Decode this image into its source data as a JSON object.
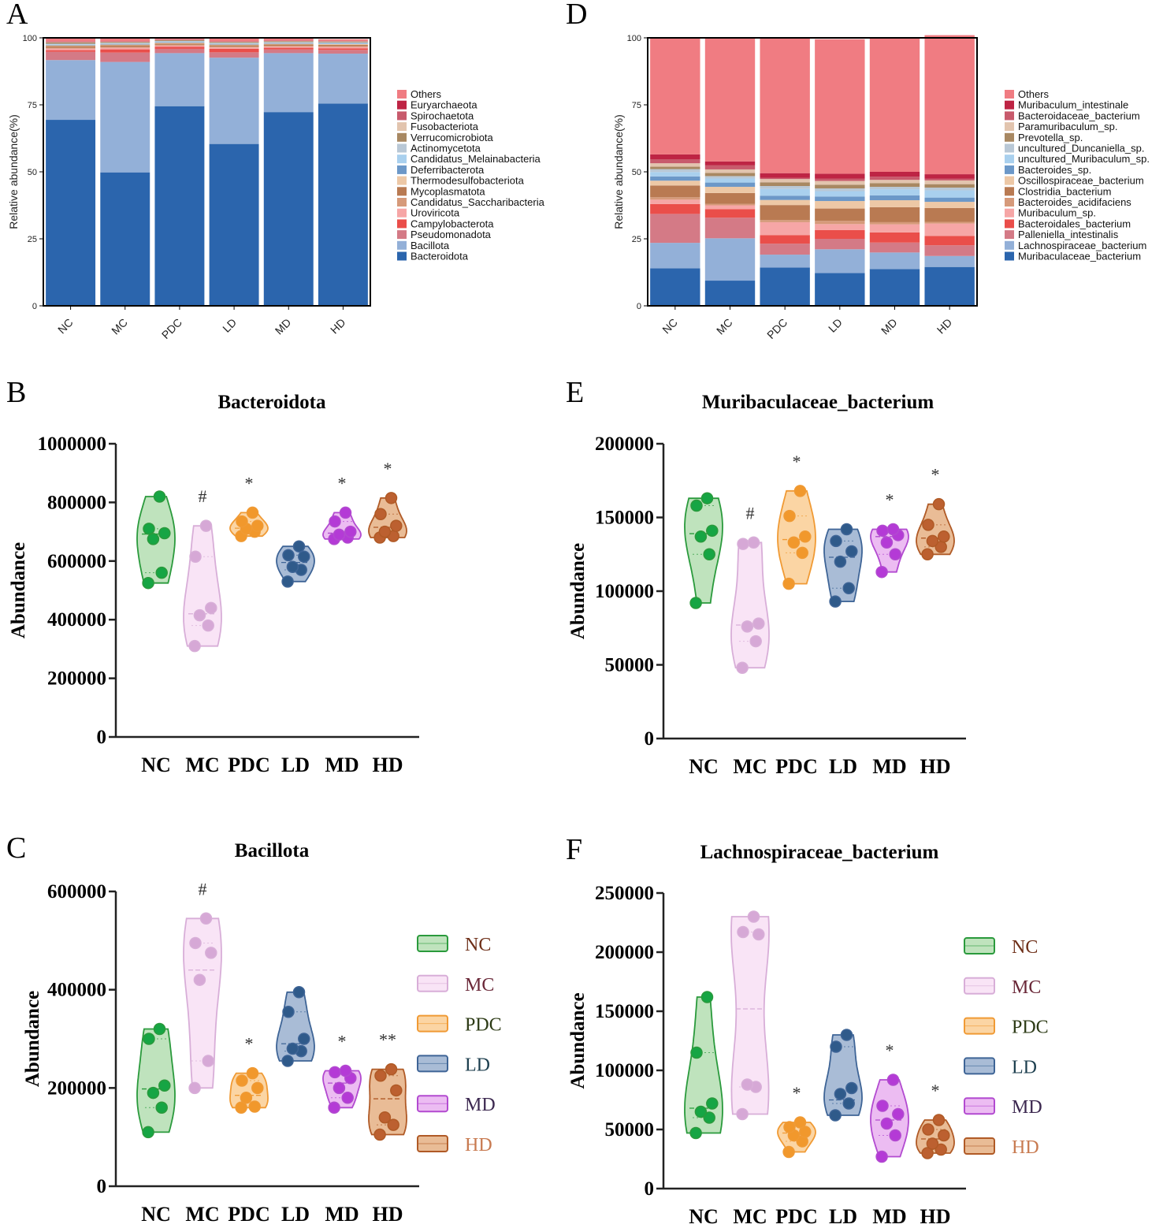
{
  "colors": {
    "NC": "#2a9a3c",
    "MC": "#d8aed8",
    "PDC": "#f09a34",
    "LD": "#3e6496",
    "MD": "#b24ad0",
    "HD": "#b05a26",
    "NC_fill": "#bfe3bd",
    "MC_fill": "#f9e4f6",
    "PDC_fill": "#fbd5a4",
    "LD_fill": "#a9bcd6",
    "MD_fill": "#ecbcf2",
    "HD_fill": "#e9bc96",
    "NC_text": "#6e2f18",
    "MC_text": "#6a2838",
    "PDC_text": "#2d3b16",
    "LD_text": "#1c3e4e",
    "MD_text": "#3c2850",
    "HD_text": "#c87a50",
    "NC_dot": "#16a544",
    "MC_dot": "#d6a8d6",
    "PDC_dot": "#f1982c",
    "LD_dot": "#2f5a8a",
    "MD_dot": "#b43ad6",
    "HD_dot": "#bc6030"
  },
  "chart_data": [
    {
      "panel": "A",
      "type": "bar",
      "stacked": true,
      "title": "",
      "ylabel": "Relative abundance(%)",
      "ylim": [
        0,
        100
      ],
      "yticks": [
        "0",
        "25",
        "50",
        "75",
        "100"
      ],
      "categories": [
        "NC",
        "MC",
        "PDC",
        "LD",
        "MD",
        "HD"
      ],
      "legend_position": "right",
      "series": [
        {
          "name": "Bacteroidota",
          "color": "#2b65ad",
          "values": [
            69.4,
            49.8,
            74.5,
            60.4,
            72.3,
            75.5
          ]
        },
        {
          "name": "Bacillota",
          "color": "#93b0d8",
          "values": [
            22.3,
            41.2,
            19.8,
            32.2,
            22.0,
            18.6
          ]
        },
        {
          "name": "Pseudomonadota",
          "color": "#d47a86",
          "values": [
            3.1,
            3.5,
            1.6,
            2.0,
            1.4,
            1.4
          ]
        },
        {
          "name": "Campylobacterota",
          "color": "#ea4e4a",
          "values": [
            0.6,
            1.2,
            0.8,
            1.3,
            0.6,
            0.6
          ]
        },
        {
          "name": "Uroviricota",
          "color": "#f6a6a6",
          "values": [
            0.6,
            0.6,
            0.4,
            0.5,
            0.4,
            0.5
          ]
        },
        {
          "name": "Candidatus_Saccharibacteria",
          "color": "#d69a7a",
          "values": [
            0.3,
            0.3,
            0.3,
            0.3,
            0.3,
            0.3
          ]
        },
        {
          "name": "Mycoplasmatota",
          "color": "#b97a52",
          "values": [
            0.6,
            0.6,
            0.5,
            0.5,
            0.5,
            0.5
          ]
        },
        {
          "name": "Thermodesulfobacteriota",
          "color": "#edc8a6",
          "values": [
            0.3,
            0.3,
            0.3,
            0.3,
            0.3,
            0.3
          ]
        },
        {
          "name": "Deferribacterota",
          "color": "#6c98c8",
          "values": [
            0.2,
            0.2,
            0.2,
            0.2,
            0.2,
            0.2
          ]
        },
        {
          "name": "Candidatus_Melainabacteria",
          "color": "#a9d0ee",
          "values": [
            0.2,
            0.2,
            0.2,
            0.2,
            0.2,
            0.2
          ]
        },
        {
          "name": "Actinomycetota",
          "color": "#b9c8d6",
          "values": [
            0.2,
            0.2,
            0.2,
            0.2,
            0.2,
            0.2
          ]
        },
        {
          "name": "Verrucomicrobiota",
          "color": "#a88862",
          "values": [
            0.5,
            0.3,
            0.3,
            0.3,
            0.3,
            0.3
          ]
        },
        {
          "name": "Fusobacteriota",
          "color": "#e2c4ae",
          "values": [
            0.1,
            0.1,
            0.1,
            0.1,
            0.1,
            0.1
          ]
        },
        {
          "name": "Spirochaetota",
          "color": "#c85a6c",
          "values": [
            0.2,
            0.1,
            0.1,
            0.1,
            0.1,
            0.1
          ]
        },
        {
          "name": "Euryarchaeota",
          "color": "#be2444",
          "values": [
            0.1,
            0.1,
            0.1,
            0.1,
            0.1,
            0.1
          ]
        },
        {
          "name": "Others",
          "color": "#f07c82",
          "values": [
            1.3,
            1.3,
            0.6,
            1.2,
            1.0,
            0.6
          ]
        }
      ]
    },
    {
      "panel": "D",
      "type": "bar",
      "stacked": true,
      "title": "",
      "ylabel": "Relative abundance(%)",
      "ylim": [
        0,
        100
      ],
      "yticks": [
        "0",
        "25",
        "50",
        "75",
        "100"
      ],
      "categories": [
        "NC",
        "MC",
        "PDC",
        "LD",
        "MD",
        "HD"
      ],
      "legend_position": "right",
      "series": [
        {
          "name": "Muribaculaceae_bacterium",
          "color": "#2b65ad",
          "values": [
            14.0,
            9.4,
            14.3,
            12.2,
            13.7,
            14.5
          ]
        },
        {
          "name": "Lachnospiraceae_bacterium",
          "color": "#93b0d8",
          "values": [
            9.5,
            15.8,
            4.8,
            8.9,
            6.2,
            4.1
          ]
        },
        {
          "name": "Palleniella_intestinalis",
          "color": "#d47a86",
          "values": [
            10.8,
            7.7,
            4.1,
            3.9,
            3.7,
            4.0
          ]
        },
        {
          "name": "Bacteroidales_bacterium",
          "color": "#ea4e4a",
          "values": [
            3.7,
            3.2,
            3.2,
            3.3,
            3.8,
            3.5
          ]
        },
        {
          "name": "Muribaculum_sp.",
          "color": "#f6a6a6",
          "values": [
            1.6,
            1.4,
            4.8,
            2.2,
            3.0,
            4.6
          ]
        },
        {
          "name": "Bacteroides_acidifaciens",
          "color": "#d69a7a",
          "values": [
            0.9,
            0.5,
            0.8,
            1.2,
            0.8,
            0.6
          ]
        },
        {
          "name": "Clostridia_bacterium",
          "color": "#b97a52",
          "values": [
            4.4,
            4.1,
            5.6,
            4.6,
            5.6,
            5.2
          ]
        },
        {
          "name": "Oscillospiraceae_bacterium",
          "color": "#edc8a6",
          "values": [
            1.8,
            2.3,
            1.9,
            2.8,
            2.6,
            2.3
          ]
        },
        {
          "name": "Bacteroides_sp.",
          "color": "#6c98c8",
          "values": [
            1.6,
            1.6,
            1.6,
            1.7,
            1.8,
            1.6
          ]
        },
        {
          "name": "uncultured_Muribaculum_sp.",
          "color": "#a9d0ee",
          "values": [
            1.6,
            1.5,
            2.5,
            2.0,
            2.3,
            2.7
          ]
        },
        {
          "name": "uncultured_Duncaniella_sp.",
          "color": "#b9c8d6",
          "values": [
            1.1,
            0.9,
            1.1,
            1.0,
            0.9,
            1.0
          ]
        },
        {
          "name": "Prevotella_sp.",
          "color": "#a88862",
          "values": [
            0.9,
            1.2,
            1.4,
            1.4,
            1.4,
            1.3
          ]
        },
        {
          "name": "Paramuribaculum_sp.",
          "color": "#e2c4ae",
          "values": [
            1.3,
            1.3,
            1.2,
            1.4,
            1.2,
            1.4
          ]
        },
        {
          "name": "Bacteroidaceae_bacterium",
          "color": "#c85a6c",
          "values": [
            1.5,
            1.6,
            0.5,
            0.9,
            1.2,
            0.6
          ]
        },
        {
          "name": "Muribaculum_intestinale",
          "color": "#be2444",
          "values": [
            1.8,
            1.4,
            1.7,
            1.8,
            1.8,
            1.7
          ]
        },
        {
          "name": "Others",
          "color": "#f07c82",
          "values": [
            43.5,
            46.1,
            50.5,
            50.2,
            50.0,
            51.9
          ]
        }
      ]
    },
    {
      "panel": "B",
      "type": "violin",
      "title": "Bacteroidota",
      "ylabel": "Abundance",
      "ylim": [
        0,
        1000000
      ],
      "yticks": [
        "0",
        "200000",
        "400000",
        "600000",
        "800000",
        "1000000"
      ],
      "categories": [
        "NC",
        "MC",
        "PDC",
        "LD",
        "MD",
        "HD"
      ],
      "points": {
        "NC": [
          525000,
          560000,
          675000,
          695000,
          710000,
          820000
        ],
        "MC": [
          310000,
          380000,
          415000,
          440000,
          615000,
          720000
        ],
        "PDC": [
          685000,
          700000,
          710000,
          720000,
          735000,
          765000
        ],
        "LD": [
          530000,
          570000,
          580000,
          615000,
          620000,
          650000
        ],
        "MD": [
          675000,
          680000,
          690000,
          700000,
          735000,
          765000
        ],
        "HD": [
          680000,
          685000,
          700000,
          720000,
          760000,
          815000
        ]
      },
      "medians": [
        692000,
        420000,
        712000,
        595000,
        695000,
        715000
      ],
      "significance": [
        "",
        "#",
        "*",
        "",
        "*",
        "*"
      ]
    },
    {
      "panel": "E",
      "type": "violin",
      "title": "Muribaculaceae_bacterium",
      "ylabel": "Abundance",
      "ylim": [
        0,
        200000
      ],
      "yticks": [
        "0",
        "50000",
        "100000",
        "150000",
        "200000"
      ],
      "categories": [
        "NC",
        "MC",
        "PDC",
        "LD",
        "MD",
        "HD"
      ],
      "points": {
        "NC": [
          92000,
          125000,
          137000,
          141000,
          158000,
          163000
        ],
        "MC": [
          48000,
          66000,
          76000,
          78000,
          132000,
          133000
        ],
        "PDC": [
          105000,
          126000,
          133000,
          137000,
          151000,
          168000
        ],
        "LD": [
          93000,
          102000,
          120000,
          127000,
          134000,
          142000
        ],
        "MD": [
          113000,
          125000,
          133000,
          138000,
          141000,
          142000
        ],
        "HD": [
          125000,
          130000,
          134000,
          137000,
          145000,
          159000
        ]
      },
      "medians": [
        139000,
        77000,
        135000,
        123000,
        137000,
        136000
      ],
      "significance": [
        "",
        "#",
        "*",
        "",
        "*",
        "*"
      ]
    },
    {
      "panel": "C",
      "type": "violin",
      "title": "Bacillota",
      "ylabel": "Abundance",
      "ylim": [
        0,
        600000
      ],
      "yticks": [
        "0",
        "200000",
        "400000",
        "600000"
      ],
      "categories": [
        "NC",
        "MC",
        "PDC",
        "LD",
        "MD",
        "HD"
      ],
      "points": {
        "NC": [
          110000,
          160000,
          190000,
          205000,
          300000,
          320000
        ],
        "MC": [
          200000,
          255000,
          420000,
          475000,
          495000,
          545000
        ],
        "PDC": [
          160000,
          162000,
          180000,
          200000,
          215000,
          230000
        ],
        "LD": [
          255000,
          275000,
          280000,
          300000,
          355000,
          395000
        ],
        "MD": [
          160000,
          180000,
          200000,
          220000,
          232000,
          235000
        ],
        "HD": [
          105000,
          125000,
          140000,
          195000,
          225000,
          238000
        ]
      },
      "medians": [
        198000,
        440000,
        185000,
        290000,
        210000,
        178000
      ],
      "significance": [
        "",
        "#",
        "*",
        "",
        "*",
        "**"
      ]
    },
    {
      "panel": "F",
      "type": "violin",
      "title": "Lachnospiraceae_bacterium",
      "ylabel": "Abundance",
      "ylim": [
        0,
        250000
      ],
      "yticks": [
        "0",
        "50000",
        "100000",
        "150000",
        "200000",
        "250000"
      ],
      "categories": [
        "NC",
        "MC",
        "PDC",
        "LD",
        "MD",
        "HD"
      ],
      "points": {
        "NC": [
          47000,
          60000,
          65000,
          72000,
          115000,
          162000
        ],
        "MC": [
          63000,
          86000,
          88000,
          215000,
          217000,
          230000
        ],
        "PDC": [
          31000,
          40000,
          45000,
          48000,
          52000,
          56000
        ],
        "LD": [
          62000,
          72000,
          80000,
          85000,
          120000,
          130000
        ],
        "MD": [
          27000,
          45000,
          55000,
          63000,
          70000,
          92000
        ],
        "HD": [
          30000,
          33000,
          38000,
          45000,
          50000,
          58000
        ]
      },
      "medians": [
        68000,
        152000,
        47000,
        75000,
        58000,
        42000
      ],
      "significance": [
        "",
        "",
        "*",
        "",
        "*",
        "*"
      ]
    }
  ],
  "violin_legend": [
    "NC",
    "MC",
    "PDC",
    "LD",
    "MD",
    "HD"
  ],
  "panel_labels": [
    "A",
    "D",
    "B",
    "E",
    "C",
    "F"
  ]
}
